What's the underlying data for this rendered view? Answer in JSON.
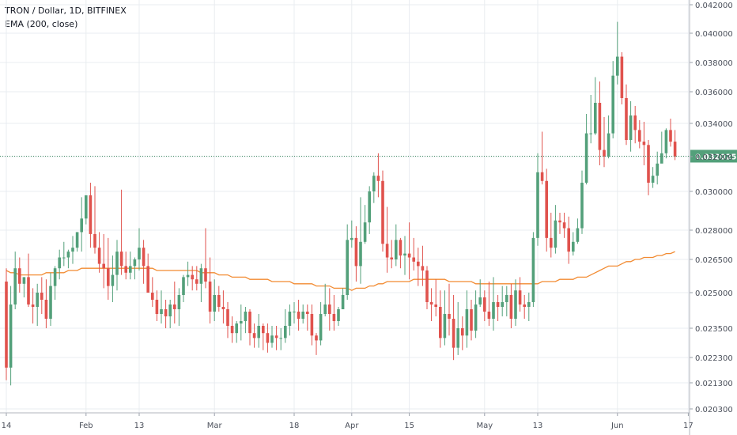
{
  "legend": {
    "symbol_line": "TRON / Dollar, 1D, BITFINEX",
    "indicator_line": "EMA (200, close)"
  },
  "colors": {
    "up": "#53a07a",
    "down": "#e0524d",
    "ema": "#f28b32",
    "grid": "#e9ecf0",
    "axis_text": "#4a4f5a",
    "last_price_bg": "#53a07a",
    "last_price_line": "#3d8a60"
  },
  "chart_data": {
    "type": "candlestick",
    "title": "TRON / Dollar, 1D, BITFINEX",
    "indicator": "EMA (200, close)",
    "x_tick_labels": [
      "14",
      "Feb",
      "13",
      "Mar",
      "18",
      "Apr",
      "15",
      "May",
      "13",
      "Jun",
      "17"
    ],
    "x_tick_days": [
      0,
      18,
      30,
      47,
      65,
      78,
      91,
      108,
      120,
      138,
      154
    ],
    "y_tick_labels": [
      "0.042000",
      "0.040000",
      "0.038000",
      "0.036000",
      "0.034000",
      "0.032000",
      "0.030000",
      "0.028000",
      "0.026500",
      "0.025000",
      "0.023500",
      "0.022300",
      "0.021300",
      "0.020300"
    ],
    "y_tick_values": [
      0.042,
      0.04,
      0.038,
      0.036,
      0.034,
      0.032,
      0.03,
      0.028,
      0.0265,
      0.025,
      0.0235,
      0.0223,
      0.0213,
      0.0203
    ],
    "y_scale": "piecewise-linear",
    "last_price": "0.032025",
    "last_price_value": 0.032025,
    "grid": true,
    "days_shown": 152,
    "close": [
      0.0219,
      0.0245,
      0.0261,
      0.0254,
      0.0257,
      0.0245,
      0.0244,
      0.025,
      0.0247,
      0.0239,
      0.0253,
      0.0261,
      0.0266,
      0.0266,
      0.0269,
      0.0271,
      0.0279,
      0.0286,
      0.0298,
      0.0278,
      0.0271,
      0.0263,
      0.0261,
      0.0253,
      0.0258,
      0.0269,
      0.0262,
      0.0259,
      0.0262,
      0.0265,
      0.0271,
      0.0262,
      0.025,
      0.0247,
      0.0241,
      0.0243,
      0.024,
      0.0245,
      0.0243,
      0.0249,
      0.0257,
      0.0258,
      0.0256,
      0.0254,
      0.0261,
      0.0255,
      0.0242,
      0.0249,
      0.0244,
      0.0243,
      0.0236,
      0.0233,
      0.0237,
      0.0238,
      0.0242,
      0.0233,
      0.0231,
      0.0236,
      0.0233,
      0.0229,
      0.0232,
      0.0231,
      0.0231,
      0.0236,
      0.0242,
      0.0242,
      0.0239,
      0.0242,
      0.0241,
      0.0232,
      0.023,
      0.0241,
      0.0245,
      0.0241,
      0.0238,
      0.0243,
      0.0249,
      0.0275,
      0.0276,
      0.0262,
      0.0274,
      0.0284,
      0.03,
      0.0309,
      0.0306,
      0.0273,
      0.0266,
      0.0265,
      0.0275,
      0.0267,
      0.0268,
      0.0266,
      0.0264,
      0.0262,
      0.026,
      0.0246,
      0.0245,
      0.0244,
      0.0231,
      0.0241,
      0.0239,
      0.0227,
      0.0235,
      0.0232,
      0.0243,
      0.0234,
      0.0245,
      0.0248,
      0.0242,
      0.0239,
      0.0246,
      0.0244,
      0.0246,
      0.0249,
      0.0239,
      0.0251,
      0.0245,
      0.0244,
      0.0246,
      0.0276,
      0.0311,
      0.0306,
      0.0276,
      0.0271,
      0.0285,
      0.0284,
      0.0281,
      0.0269,
      0.0274,
      0.0281,
      0.0305,
      0.0334,
      0.0334,
      0.0353,
      0.0324,
      0.032,
      0.0334,
      0.0371,
      0.0384,
      0.0356,
      0.033,
      0.0345,
      0.0336,
      0.0329,
      0.0327,
      0.0305,
      0.0309,
      0.0316,
      0.0322,
      0.0336,
      0.0329,
      0.032
    ],
    "open": [
      0.0255,
      0.0219,
      0.0245,
      0.0261,
      0.0254,
      0.0257,
      0.0245,
      0.0244,
      0.025,
      0.0247,
      0.0239,
      0.0253,
      0.0261,
      0.0266,
      0.0266,
      0.0269,
      0.0271,
      0.0279,
      0.0286,
      0.0298,
      0.0278,
      0.0271,
      0.0263,
      0.0261,
      0.0253,
      0.0258,
      0.0269,
      0.0262,
      0.0259,
      0.0262,
      0.0265,
      0.0271,
      0.0262,
      0.025,
      0.0247,
      0.0241,
      0.0243,
      0.024,
      0.0245,
      0.0243,
      0.0249,
      0.0257,
      0.0258,
      0.0256,
      0.0254,
      0.0261,
      0.0255,
      0.0242,
      0.0249,
      0.0244,
      0.0243,
      0.0236,
      0.0233,
      0.0237,
      0.0238,
      0.0242,
      0.0233,
      0.0231,
      0.0236,
      0.0233,
      0.0229,
      0.0232,
      0.0231,
      0.0231,
      0.0236,
      0.0242,
      0.0242,
      0.0239,
      0.0242,
      0.0241,
      0.0232,
      0.023,
      0.0241,
      0.0245,
      0.0241,
      0.0238,
      0.0243,
      0.0249,
      0.0275,
      0.0276,
      0.0262,
      0.0274,
      0.0284,
      0.03,
      0.0309,
      0.0306,
      0.0273,
      0.0266,
      0.0265,
      0.0275,
      0.0267,
      0.0268,
      0.0266,
      0.0264,
      0.0262,
      0.026,
      0.0246,
      0.0245,
      0.0244,
      0.0231,
      0.0241,
      0.0239,
      0.0227,
      0.0235,
      0.0232,
      0.0243,
      0.0234,
      0.0245,
      0.0248,
      0.0242,
      0.0239,
      0.0246,
      0.0244,
      0.0246,
      0.0249,
      0.0239,
      0.0251,
      0.0245,
      0.0244,
      0.0246,
      0.0276,
      0.0311,
      0.0306,
      0.0276,
      0.0271,
      0.0285,
      0.0284,
      0.0281,
      0.0269,
      0.0274,
      0.0281,
      0.0305,
      0.0334,
      0.0334,
      0.0353,
      0.0324,
      0.032,
      0.0334,
      0.0371,
      0.0384,
      0.0356,
      0.033,
      0.0345,
      0.0336,
      0.0329,
      0.0327,
      0.0305,
      0.0309,
      0.0316,
      0.0322,
      0.0336,
      0.0329
    ],
    "high": [
      0.0261,
      0.0253,
      0.0269,
      0.0266,
      0.0257,
      0.0268,
      0.0252,
      0.0254,
      0.0257,
      0.0256,
      0.0259,
      0.0262,
      0.027,
      0.0274,
      0.027,
      0.0277,
      0.0279,
      0.0297,
      0.0297,
      0.0305,
      0.0303,
      0.0279,
      0.0278,
      0.0276,
      0.0267,
      0.0275,
      0.0301,
      0.0269,
      0.0269,
      0.0266,
      0.0281,
      0.0275,
      0.0268,
      0.0257,
      0.0251,
      0.0251,
      0.0247,
      0.0247,
      0.0255,
      0.0252,
      0.0258,
      0.0264,
      0.0262,
      0.0262,
      0.0263,
      0.0281,
      0.0266,
      0.0256,
      0.0253,
      0.0251,
      0.0246,
      0.024,
      0.0238,
      0.0245,
      0.0244,
      0.0243,
      0.0237,
      0.0241,
      0.0237,
      0.0237,
      0.0236,
      0.0236,
      0.0235,
      0.0243,
      0.0245,
      0.0246,
      0.0247,
      0.0245,
      0.0245,
      0.0245,
      0.0233,
      0.0246,
      0.0254,
      0.0252,
      0.0249,
      0.0244,
      0.0252,
      0.0283,
      0.0285,
      0.0282,
      0.0297,
      0.0293,
      0.0303,
      0.0311,
      0.0322,
      0.0312,
      0.0292,
      0.0275,
      0.0283,
      0.0276,
      0.0277,
      0.0284,
      0.0276,
      0.0271,
      0.0272,
      0.0262,
      0.0252,
      0.0256,
      0.0251,
      0.0251,
      0.0254,
      0.0249,
      0.0246,
      0.024,
      0.0251,
      0.0247,
      0.0251,
      0.0256,
      0.0251,
      0.0255,
      0.0257,
      0.0249,
      0.0253,
      0.0253,
      0.0254,
      0.0256,
      0.0257,
      0.0249,
      0.025,
      0.0279,
      0.0322,
      0.0335,
      0.0313,
      0.0289,
      0.0293,
      0.0289,
      0.0289,
      0.0287,
      0.0279,
      0.0286,
      0.0312,
      0.0346,
      0.0358,
      0.037,
      0.0367,
      0.0344,
      0.0345,
      0.0381,
      0.0408,
      0.0387,
      0.0365,
      0.0354,
      0.0351,
      0.0342,
      0.0341,
      0.033,
      0.0314,
      0.0323,
      0.0335,
      0.0337,
      0.0343,
      0.0336
    ],
    "low": [
      0.0214,
      0.0212,
      0.0243,
      0.025,
      0.0248,
      0.0244,
      0.0237,
      0.0236,
      0.0241,
      0.0235,
      0.0236,
      0.0247,
      0.0256,
      0.0262,
      0.0261,
      0.0263,
      0.0269,
      0.0269,
      0.0283,
      0.0271,
      0.0268,
      0.0259,
      0.0252,
      0.0247,
      0.0246,
      0.0251,
      0.0258,
      0.0256,
      0.0256,
      0.0256,
      0.026,
      0.0254,
      0.025,
      0.0244,
      0.0238,
      0.0237,
      0.0235,
      0.0235,
      0.0237,
      0.0236,
      0.0246,
      0.0253,
      0.0251,
      0.0251,
      0.0246,
      0.0252,
      0.0237,
      0.0238,
      0.0242,
      0.0237,
      0.0231,
      0.0229,
      0.0229,
      0.023,
      0.0233,
      0.0228,
      0.0227,
      0.0227,
      0.0226,
      0.0225,
      0.0227,
      0.0226,
      0.0226,
      0.0229,
      0.0232,
      0.0237,
      0.0234,
      0.0237,
      0.0234,
      0.0228,
      0.0224,
      0.0228,
      0.024,
      0.0234,
      0.0234,
      0.0236,
      0.0243,
      0.0247,
      0.0271,
      0.0255,
      0.0254,
      0.0273,
      0.0278,
      0.0294,
      0.0297,
      0.0269,
      0.0259,
      0.0261,
      0.0262,
      0.0261,
      0.0258,
      0.0256,
      0.026,
      0.0253,
      0.0253,
      0.0243,
      0.0238,
      0.024,
      0.0227,
      0.0228,
      0.0232,
      0.0222,
      0.0224,
      0.0226,
      0.0227,
      0.023,
      0.0231,
      0.0244,
      0.0238,
      0.0236,
      0.0234,
      0.0238,
      0.024,
      0.024,
      0.0235,
      0.0236,
      0.0242,
      0.0239,
      0.0238,
      0.0244,
      0.0272,
      0.0304,
      0.0269,
      0.0266,
      0.0268,
      0.0278,
      0.0276,
      0.0263,
      0.0267,
      0.0273,
      0.0278,
      0.0304,
      0.0328,
      0.0333,
      0.0315,
      0.0314,
      0.0319,
      0.0331,
      0.0365,
      0.0352,
      0.0327,
      0.0323,
      0.0328,
      0.0325,
      0.0315,
      0.0298,
      0.0302,
      0.0304,
      0.0317,
      0.0319,
      0.0326,
      0.0318
    ],
    "ema_200": [
      0.026,
      0.0259,
      0.0259,
      0.0258,
      0.0258,
      0.0258,
      0.0258,
      0.0258,
      0.0258,
      0.0259,
      0.0259,
      0.0259,
      0.0259,
      0.0259,
      0.026,
      0.026,
      0.026,
      0.0261,
      0.0261,
      0.0261,
      0.0261,
      0.0261,
      0.0261,
      0.0261,
      0.0261,
      0.0261,
      0.0261,
      0.0261,
      0.0261,
      0.0261,
      0.0261,
      0.0261,
      0.0261,
      0.0261,
      0.026,
      0.026,
      0.026,
      0.026,
      0.026,
      0.026,
      0.026,
      0.026,
      0.026,
      0.026,
      0.0259,
      0.0259,
      0.0259,
      0.0259,
      0.0258,
      0.0258,
      0.0258,
      0.0257,
      0.0257,
      0.0257,
      0.0257,
      0.0256,
      0.0256,
      0.0256,
      0.0256,
      0.0256,
      0.0255,
      0.0255,
      0.0255,
      0.0255,
      0.0255,
      0.0254,
      0.0254,
      0.0254,
      0.0254,
      0.0254,
      0.0253,
      0.0253,
      0.0253,
      0.0253,
      0.0252,
      0.0252,
      0.0252,
      0.0252,
      0.0251,
      0.0252,
      0.0252,
      0.0252,
      0.0253,
      0.0253,
      0.0254,
      0.0254,
      0.0255,
      0.0255,
      0.0255,
      0.0255,
      0.0255,
      0.0255,
      0.0256,
      0.0256,
      0.0256,
      0.0256,
      0.0256,
      0.0256,
      0.0256,
      0.0256,
      0.0255,
      0.0255,
      0.0255,
      0.0255,
      0.0255,
      0.0255,
      0.0254,
      0.0254,
      0.0254,
      0.0254,
      0.0254,
      0.0254,
      0.0254,
      0.0254,
      0.0254,
      0.0254,
      0.0254,
      0.0254,
      0.0254,
      0.0254,
      0.0254,
      0.0255,
      0.0255,
      0.0255,
      0.0255,
      0.0256,
      0.0256,
      0.0256,
      0.0256,
      0.0257,
      0.0257,
      0.0257,
      0.0258,
      0.0259,
      0.026,
      0.0261,
      0.0262,
      0.0262,
      0.0262,
      0.0263,
      0.0264,
      0.0264,
      0.0265,
      0.0265,
      0.0266,
      0.0266,
      0.0266,
      0.0267,
      0.0267,
      0.0268,
      0.0268,
      0.0269
    ]
  }
}
